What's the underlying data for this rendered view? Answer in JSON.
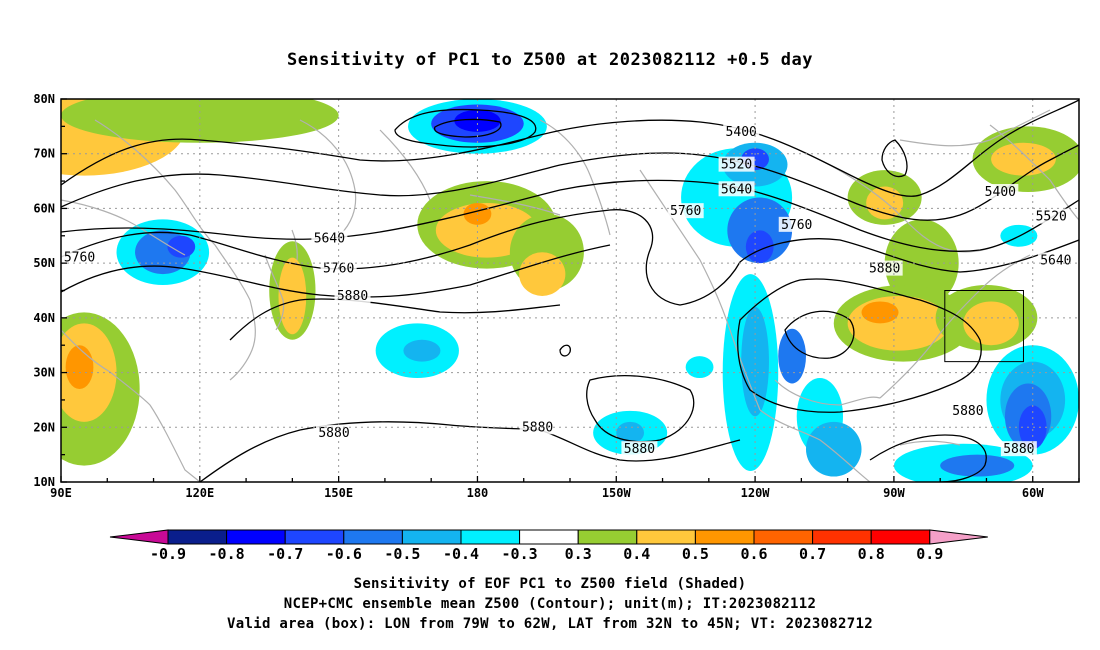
{
  "title": "Sensitivity of PC1 to Z500 at 2023082112 +0.5 day",
  "map": {
    "lon_labels": [
      "90E",
      "120E",
      "150E",
      "180",
      "150W",
      "120W",
      "90W",
      "60W"
    ],
    "lat_labels": [
      "80N",
      "70N",
      "60N",
      "50N",
      "40N",
      "30N",
      "20N",
      "10N"
    ],
    "domain": {
      "lon_west": 90,
      "lon_east": 310,
      "lat_south": 10,
      "lat_north": 80
    },
    "contour_labels": [
      {
        "text": "5400",
        "lon": 237,
        "lat": 74
      },
      {
        "text": "5520",
        "lon": 236,
        "lat": 68
      },
      {
        "text": "5640",
        "lon": 236,
        "lat": 63.5
      },
      {
        "text": "5760",
        "lon": 225,
        "lat": 59.5
      },
      {
        "text": "5760",
        "lon": 249,
        "lat": 57
      },
      {
        "text": "5880",
        "lon": 268,
        "lat": 49
      },
      {
        "text": "5400",
        "lon": 293,
        "lat": 63
      },
      {
        "text": "5520",
        "lon": 304,
        "lat": 58.5
      },
      {
        "text": "5640",
        "lon": 305,
        "lat": 50.5
      },
      {
        "text": "5640",
        "lon": 148,
        "lat": 54.5
      },
      {
        "text": "5760",
        "lon": 94,
        "lat": 51
      },
      {
        "text": "5760",
        "lon": 150,
        "lat": 49
      },
      {
        "text": "5880",
        "lon": 153,
        "lat": 44
      },
      {
        "text": "5880",
        "lon": 286,
        "lat": 23
      },
      {
        "text": "5880",
        "lon": 215,
        "lat": 16
      },
      {
        "text": "5880",
        "lon": 193,
        "lat": 20
      },
      {
        "text": "5880",
        "lon": 149,
        "lat": 19
      },
      {
        "text": "5880",
        "lon": 297,
        "lat": 16
      }
    ],
    "valid_box": {
      "lon_west": 281,
      "lon_east": 298,
      "lat_south": 32,
      "lat_north": 45
    },
    "shading_regions": [
      {
        "lon": 95,
        "lat": 75,
        "w": 22,
        "h": 9,
        "v": 0.4
      },
      {
        "lon": 120,
        "lat": 77,
        "w": 30,
        "h": 5,
        "v": 0.3
      },
      {
        "lon": 112,
        "lat": 52,
        "w": 10,
        "h": 6,
        "v": -0.3
      },
      {
        "lon": 112,
        "lat": 52,
        "w": 6,
        "h": 4,
        "v": -0.5
      },
      {
        "lon": 116,
        "lat": 53,
        "w": 3,
        "h": 2,
        "v": -0.6
      },
      {
        "lon": 140,
        "lat": 45,
        "w": 5,
        "h": 9,
        "v": 0.3
      },
      {
        "lon": 140,
        "lat": 44,
        "w": 3,
        "h": 7,
        "v": 0.4
      },
      {
        "lon": 95,
        "lat": 27,
        "w": 12,
        "h": 14,
        "v": 0.3
      },
      {
        "lon": 95,
        "lat": 30,
        "w": 7,
        "h": 9,
        "v": 0.4
      },
      {
        "lon": 94,
        "lat": 31,
        "w": 3,
        "h": 4,
        "v": 0.5
      },
      {
        "lon": 180,
        "lat": 75,
        "w": 15,
        "h": 5,
        "v": -0.3
      },
      {
        "lon": 180,
        "lat": 75.5,
        "w": 10,
        "h": 3.5,
        "v": -0.6
      },
      {
        "lon": 180,
        "lat": 76,
        "w": 5,
        "h": 2,
        "v": -0.7
      },
      {
        "lon": 182,
        "lat": 57,
        "w": 15,
        "h": 8,
        "v": 0.3
      },
      {
        "lon": 182,
        "lat": 56,
        "w": 11,
        "h": 5,
        "v": 0.4
      },
      {
        "lon": 180,
        "lat": 59,
        "w": 3,
        "h": 2,
        "v": 0.5
      },
      {
        "lon": 195,
        "lat": 52,
        "w": 8,
        "h": 7,
        "v": 0.3
      },
      {
        "lon": 194,
        "lat": 48,
        "w": 5,
        "h": 4,
        "v": 0.4
      },
      {
        "lon": 167,
        "lat": 34,
        "w": 9,
        "h": 5,
        "v": -0.3
      },
      {
        "lon": 168,
        "lat": 34,
        "w": 4,
        "h": 2,
        "v": -0.4
      },
      {
        "lon": 228,
        "lat": 31,
        "w": 3,
        "h": 2,
        "v": -0.3
      },
      {
        "lon": 213,
        "lat": 19,
        "w": 8,
        "h": 4,
        "v": -0.3
      },
      {
        "lon": 213,
        "lat": 19,
        "w": 3,
        "h": 2,
        "v": -0.4
      },
      {
        "lon": 236,
        "lat": 62,
        "w": 12,
        "h": 9,
        "v": -0.3
      },
      {
        "lon": 240,
        "lat": 68,
        "w": 7,
        "h": 4,
        "v": -0.4
      },
      {
        "lon": 240,
        "lat": 69,
        "w": 3,
        "h": 2,
        "v": -0.6
      },
      {
        "lon": 241,
        "lat": 56,
        "w": 7,
        "h": 6,
        "v": -0.5
      },
      {
        "lon": 241,
        "lat": 53,
        "w": 3,
        "h": 3,
        "v": -0.6
      },
      {
        "lon": 239,
        "lat": 30,
        "w": 6,
        "h": 18,
        "v": -0.3
      },
      {
        "lon": 240,
        "lat": 32,
        "w": 3,
        "h": 10,
        "v": -0.4
      },
      {
        "lon": 248,
        "lat": 33,
        "w": 3,
        "h": 5,
        "v": -0.5
      },
      {
        "lon": 254,
        "lat": 22,
        "w": 5,
        "h": 7,
        "v": -0.3
      },
      {
        "lon": 257,
        "lat": 16,
        "w": 6,
        "h": 5,
        "v": -0.4
      },
      {
        "lon": 268,
        "lat": 62,
        "w": 8,
        "h": 5,
        "v": 0.3
      },
      {
        "lon": 268,
        "lat": 61,
        "w": 4,
        "h": 3,
        "v": 0.4
      },
      {
        "lon": 276,
        "lat": 50,
        "w": 8,
        "h": 8,
        "v": 0.3
      },
      {
        "lon": 272,
        "lat": 39,
        "w": 15,
        "h": 7,
        "v": 0.3
      },
      {
        "lon": 271,
        "lat": 39,
        "w": 11,
        "h": 5,
        "v": 0.4
      },
      {
        "lon": 267,
        "lat": 41,
        "w": 4,
        "h": 2,
        "v": 0.5
      },
      {
        "lon": 290,
        "lat": 40,
        "w": 11,
        "h": 6,
        "v": 0.3
      },
      {
        "lon": 291,
        "lat": 39,
        "w": 6,
        "h": 4,
        "v": 0.4
      },
      {
        "lon": 299,
        "lat": 69,
        "w": 12,
        "h": 6,
        "v": 0.3
      },
      {
        "lon": 298,
        "lat": 69,
        "w": 7,
        "h": 3,
        "v": 0.4
      },
      {
        "lon": 297,
        "lat": 55,
        "w": 4,
        "h": 2,
        "v": -0.3
      },
      {
        "lon": 300,
        "lat": 25,
        "w": 10,
        "h": 10,
        "v": -0.3
      },
      {
        "lon": 300,
        "lat": 25,
        "w": 7,
        "h": 7,
        "v": -0.4
      },
      {
        "lon": 299,
        "lat": 22,
        "w": 5,
        "h": 6,
        "v": -0.5
      },
      {
        "lon": 300,
        "lat": 20,
        "w": 3,
        "h": 4,
        "v": -0.6
      },
      {
        "lon": 285,
        "lat": 13,
        "w": 15,
        "h": 4,
        "v": -0.3
      },
      {
        "lon": 288,
        "lat": 13,
        "w": 8,
        "h": 2,
        "v": -0.5
      }
    ]
  },
  "colorbar": {
    "labels": [
      "-0.9",
      "-0.8",
      "-0.7",
      "-0.6",
      "-0.5",
      "-0.4",
      "-0.3",
      "0.3",
      "0.4",
      "0.5",
      "0.6",
      "0.7",
      "0.8",
      "0.9"
    ],
    "low_extension_color": "#c80a96",
    "high_extension_color": "#f5a0c8",
    "colors": [
      "#0a1e8c",
      "#0000ff",
      "#1e46ff",
      "#1e78f0",
      "#14b4f0",
      "#00f0ff",
      "#ffffff",
      "#96cd32",
      "#ffc83c",
      "#ff9600",
      "#ff6400",
      "#ff3200",
      "#ff0000"
    ]
  },
  "footer": {
    "line1": "Sensitivity of EOF PC1 to Z500 field (Shaded)",
    "line2": "NCEP+CMC ensemble mean Z500 (Contour); unit(m); IT:2023082112",
    "line3": "Valid area (box): LON from 79W to 62W, LAT from 32N to 45N; VT: 2023082712"
  }
}
